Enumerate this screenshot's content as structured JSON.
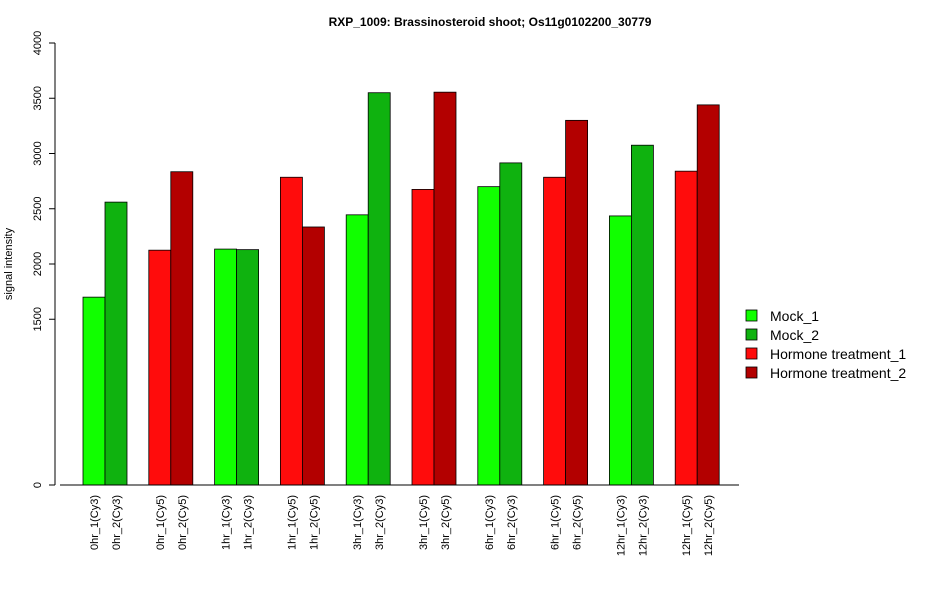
{
  "chart_data": {
    "type": "bar",
    "title": "RXP_1009: Brassinosteroid shoot; Os11g0102200_30779",
    "ylabel": "signal intensity",
    "xlabel": "",
    "ylim": [
      0,
      4000
    ],
    "yticks": [
      0,
      1500,
      2000,
      2500,
      3000,
      3500,
      4000
    ],
    "grid": false,
    "legend_position": "right",
    "legend": [
      {
        "name": "Mock_1",
        "color": "#11ff00"
      },
      {
        "name": "Mock_2",
        "color": "#0fb20f"
      },
      {
        "name": "Hormone treatment_1",
        "color": "#ff0c0c"
      },
      {
        "name": "Hormone treatment_2",
        "color": "#b30000"
      }
    ],
    "groups": [
      {
        "bars": [
          {
            "label": "0hr_1(Cy3)",
            "value": 1700,
            "series": 0
          },
          {
            "label": "0hr_2(Cy3)",
            "value": 2560,
            "series": 1
          }
        ]
      },
      {
        "bars": [
          {
            "label": "0hr_1(Cy5)",
            "value": 2125,
            "series": 2
          },
          {
            "label": "0hr_2(Cy5)",
            "value": 2835,
            "series": 3
          }
        ]
      },
      {
        "bars": [
          {
            "label": "1hr_1(Cy3)",
            "value": 2135,
            "series": 0
          },
          {
            "label": "1hr_2(Cy3)",
            "value": 2130,
            "series": 1
          }
        ]
      },
      {
        "bars": [
          {
            "label": "1hr_1(Cy5)",
            "value": 2785,
            "series": 2
          },
          {
            "label": "1hr_2(Cy5)",
            "value": 2335,
            "series": 3
          }
        ]
      },
      {
        "bars": [
          {
            "label": "3hr_1(Cy3)",
            "value": 2445,
            "series": 0
          },
          {
            "label": "3hr_2(Cy3)",
            "value": 3550,
            "series": 1
          }
        ]
      },
      {
        "bars": [
          {
            "label": "3hr_1(Cy5)",
            "value": 2675,
            "series": 2
          },
          {
            "label": "3hr_2(Cy5)",
            "value": 3555,
            "series": 3
          }
        ]
      },
      {
        "bars": [
          {
            "label": "6hr_1(Cy3)",
            "value": 2700,
            "series": 0
          },
          {
            "label": "6hr_2(Cy3)",
            "value": 2915,
            "series": 1
          }
        ]
      },
      {
        "bars": [
          {
            "label": "6hr_1(Cy5)",
            "value": 2785,
            "series": 2
          },
          {
            "label": "6hr_2(Cy5)",
            "value": 3300,
            "series": 3
          }
        ]
      },
      {
        "bars": [
          {
            "label": "12hr_1(Cy3)",
            "value": 2435,
            "series": 0
          },
          {
            "label": "12hr_2(Cy3)",
            "value": 3075,
            "series": 1
          }
        ]
      },
      {
        "bars": [
          {
            "label": "12hr_1(Cy5)",
            "value": 2840,
            "series": 2
          },
          {
            "label": "12hr_2(Cy5)",
            "value": 3440,
            "series": 3
          }
        ]
      }
    ]
  }
}
